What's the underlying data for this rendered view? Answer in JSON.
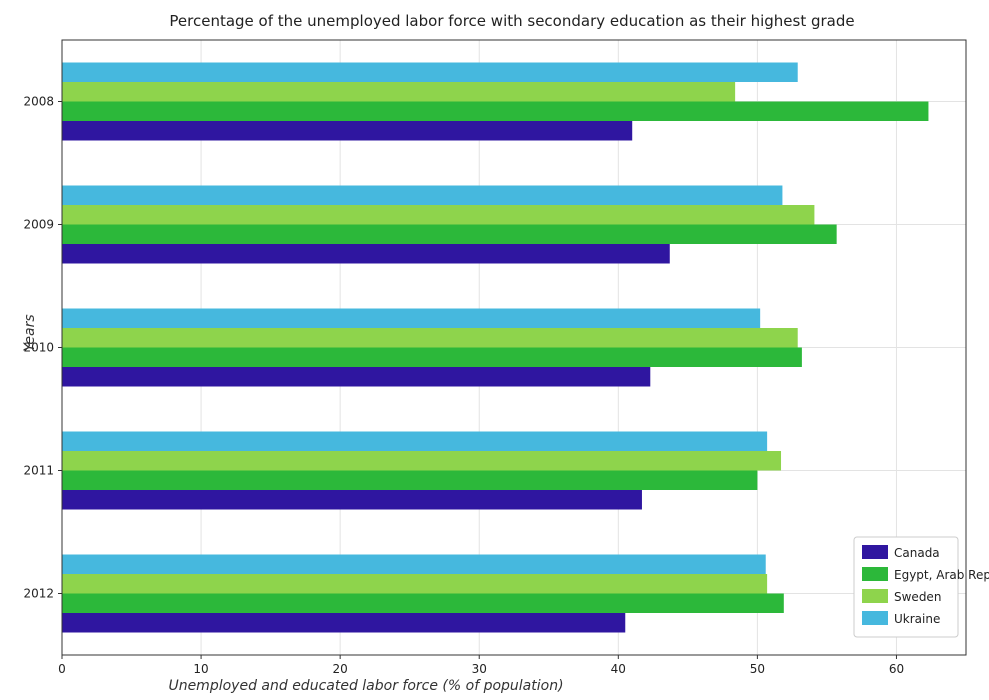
{
  "chart_data": {
    "type": "bar",
    "orientation": "horizontal",
    "title": "Percentage of the unemployed labor force with secondary education as their highest grade",
    "xlabel": "Unemployed and educated labor force (% of population)",
    "ylabel": "Years",
    "categories": [
      "2008",
      "2009",
      "2010",
      "2011",
      "2012"
    ],
    "xlim": [
      0,
      65
    ],
    "xticks": [
      0,
      10,
      20,
      30,
      40,
      50,
      60
    ],
    "grid": true,
    "legend_position": "bottom-right",
    "series": [
      {
        "name": "Canada",
        "color": "#2f16a0",
        "values": [
          41.0,
          43.7,
          42.3,
          41.7,
          40.5
        ]
      },
      {
        "name": "Egypt, Arab Rep.",
        "color": "#2cb83a",
        "values": [
          62.3,
          55.7,
          53.2,
          50.0,
          51.9
        ]
      },
      {
        "name": "Sweden",
        "color": "#8ed44c",
        "values": [
          48.4,
          54.1,
          52.9,
          51.7,
          50.7
        ]
      },
      {
        "name": "Ukraine",
        "color": "#46b8de",
        "values": [
          52.9,
          51.8,
          50.2,
          50.7,
          50.6
        ]
      }
    ]
  }
}
